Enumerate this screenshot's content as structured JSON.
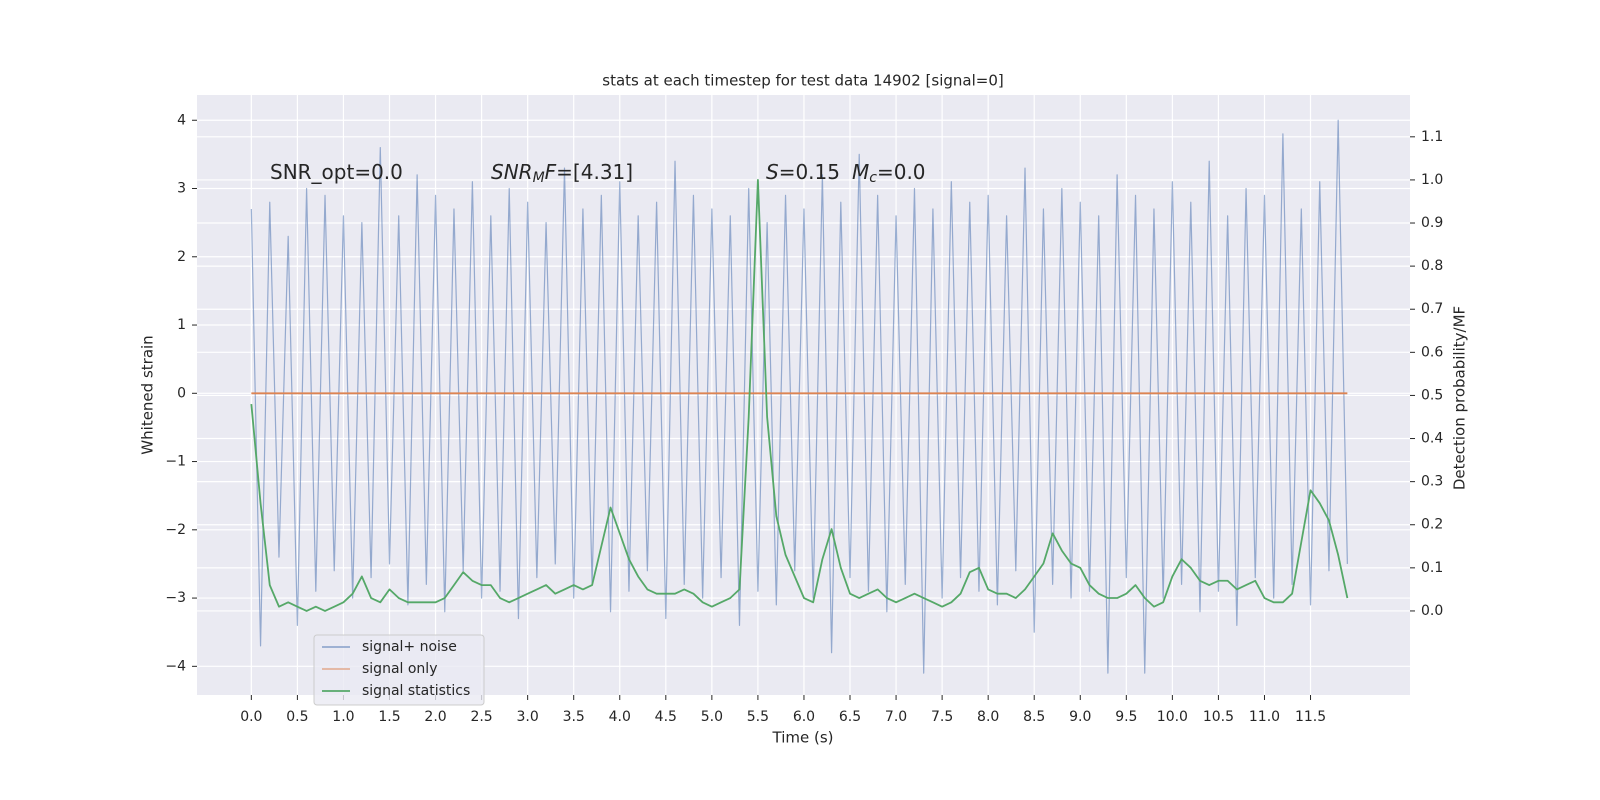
{
  "chart_data": {
    "type": "line",
    "title": "stats at each timestep for test data 14902 [signal=0]",
    "xlabel": "Time (s)",
    "ylabel": "Whitened strain",
    "y2label": "Detection probability/MF",
    "annotations": [
      [
        "SNR_opt=0.0"
      ],
      [
        "SNR",
        "M",
        "F",
        "=[4.31]"
      ],
      [
        "S",
        "=0.15",
        "M",
        "c",
        "=0.0"
      ]
    ],
    "x": [
      0.0,
      0.1,
      0.2,
      0.3,
      0.4,
      0.5,
      0.6,
      0.7,
      0.8,
      0.9,
      1.0,
      1.1,
      1.2,
      1.3,
      1.4,
      1.5,
      1.6,
      1.7,
      1.8,
      1.9,
      2.0,
      2.1,
      2.2,
      2.3,
      2.4,
      2.5,
      2.6,
      2.7,
      2.8,
      2.9,
      3.0,
      3.1,
      3.2,
      3.3,
      3.4,
      3.5,
      3.6,
      3.7,
      3.8,
      3.9,
      4.0,
      4.1,
      4.2,
      4.3,
      4.4,
      4.5,
      4.6,
      4.7,
      4.8,
      4.9,
      5.0,
      5.1,
      5.2,
      5.3,
      5.4,
      5.5,
      5.6,
      5.7,
      5.8,
      5.9,
      6.0,
      6.1,
      6.2,
      6.3,
      6.4,
      6.5,
      6.6,
      6.7,
      6.8,
      6.9,
      7.0,
      7.1,
      7.2,
      7.3,
      7.4,
      7.5,
      7.6,
      7.7,
      7.8,
      7.9,
      8.0,
      8.1,
      8.2,
      8.3,
      8.4,
      8.5,
      8.6,
      8.7,
      8.8,
      8.9,
      9.0,
      9.1,
      9.2,
      9.3,
      9.4,
      9.5,
      9.6,
      9.7,
      9.8,
      9.9,
      10.0,
      10.1,
      10.2,
      10.3,
      10.4,
      10.5,
      10.6,
      10.7,
      10.8,
      10.9,
      11.0,
      11.1,
      11.2,
      11.3,
      11.4,
      11.5,
      11.6,
      11.7,
      11.8,
      11.9
    ],
    "series": [
      {
        "name": "signal+ noise",
        "color": "#4c72b0",
        "values": [
          2.7,
          -3.7,
          2.8,
          -2.4,
          2.3,
          -3.4,
          3.0,
          -2.9,
          2.9,
          -2.6,
          2.6,
          -3.0,
          2.5,
          -2.7,
          3.6,
          -2.5,
          2.6,
          -3.1,
          3.2,
          -2.8,
          2.9,
          -3.2,
          2.7,
          -2.6,
          3.1,
          -3.0,
          2.6,
          -2.9,
          3.0,
          -3.3,
          2.8,
          -2.7,
          2.5,
          -2.5,
          3.3,
          -3.0,
          2.7,
          -2.8,
          2.9,
          -3.2,
          3.1,
          -2.9,
          2.6,
          -2.6,
          2.8,
          -3.3,
          3.4,
          -2.8,
          2.9,
          -3.0,
          2.7,
          -2.7,
          2.6,
          -3.4,
          3.0,
          -2.9,
          2.5,
          -3.1,
          2.9,
          -2.6,
          2.7,
          -3.0,
          3.2,
          -3.8,
          2.8,
          -2.7,
          3.5,
          -2.9,
          2.9,
          -3.2,
          2.6,
          -2.8,
          3.0,
          -4.1,
          2.7,
          -3.0,
          3.1,
          -2.7,
          2.8,
          -2.9,
          2.9,
          -3.1,
          2.6,
          -2.6,
          3.3,
          -3.5,
          2.7,
          -2.8,
          3.0,
          -3.0,
          2.8,
          -2.9,
          2.6,
          -4.1,
          3.2,
          -2.7,
          2.9,
          -4.1,
          2.7,
          -3.0,
          3.1,
          -2.8,
          2.8,
          -3.2,
          3.4,
          -2.9,
          2.6,
          -3.4,
          3.0,
          -2.7,
          2.9,
          -3.0,
          3.8,
          -2.8,
          2.7,
          -3.1,
          3.1,
          -2.6,
          4.0,
          -2.5
        ]
      },
      {
        "name": "signal only",
        "color": "#dd8452",
        "values": [
          0,
          0,
          0,
          0,
          0,
          0,
          0,
          0,
          0,
          0,
          0,
          0,
          0,
          0,
          0,
          0,
          0,
          0,
          0,
          0,
          0,
          0,
          0,
          0,
          0,
          0,
          0,
          0,
          0,
          0,
          0,
          0,
          0,
          0,
          0,
          0,
          0,
          0,
          0,
          0,
          0,
          0,
          0,
          0,
          0,
          0,
          0,
          0,
          0,
          0,
          0,
          0,
          0,
          0,
          0,
          0,
          0,
          0,
          0,
          0,
          0,
          0,
          0,
          0,
          0,
          0,
          0,
          0,
          0,
          0,
          0,
          0,
          0,
          0,
          0,
          0,
          0,
          0,
          0,
          0,
          0,
          0,
          0,
          0,
          0,
          0,
          0,
          0,
          0,
          0,
          0,
          0,
          0,
          0,
          0,
          0,
          0,
          0,
          0,
          0,
          0,
          0,
          0,
          0,
          0,
          0,
          0,
          0,
          0,
          0,
          0,
          0,
          0,
          0,
          0,
          0,
          0,
          0,
          0,
          0
        ]
      },
      {
        "name": "signal statistics",
        "color": "#55a868",
        "axis": "y2",
        "values": [
          0.48,
          0.25,
          0.06,
          0.01,
          0.02,
          0.01,
          0.0,
          0.01,
          0.0,
          0.01,
          0.02,
          0.04,
          0.08,
          0.03,
          0.02,
          0.05,
          0.03,
          0.02,
          0.02,
          0.02,
          0.02,
          0.03,
          0.06,
          0.09,
          0.07,
          0.06,
          0.06,
          0.03,
          0.02,
          0.03,
          0.04,
          0.05,
          0.06,
          0.04,
          0.05,
          0.06,
          0.05,
          0.06,
          0.15,
          0.24,
          0.18,
          0.12,
          0.08,
          0.05,
          0.04,
          0.04,
          0.04,
          0.05,
          0.04,
          0.02,
          0.01,
          0.02,
          0.03,
          0.05,
          0.45,
          1.0,
          0.45,
          0.22,
          0.13,
          0.08,
          0.03,
          0.02,
          0.12,
          0.19,
          0.1,
          0.04,
          0.03,
          0.04,
          0.05,
          0.03,
          0.02,
          0.03,
          0.04,
          0.03,
          0.02,
          0.01,
          0.02,
          0.04,
          0.09,
          0.1,
          0.05,
          0.04,
          0.04,
          0.03,
          0.05,
          0.08,
          0.11,
          0.18,
          0.14,
          0.11,
          0.1,
          0.06,
          0.04,
          0.03,
          0.03,
          0.04,
          0.06,
          0.03,
          0.01,
          0.02,
          0.08,
          0.12,
          0.1,
          0.07,
          0.06,
          0.07,
          0.07,
          0.05,
          0.06,
          0.07,
          0.03,
          0.02,
          0.02,
          0.04,
          0.16,
          0.28,
          0.25,
          0.21,
          0.13,
          0.03
        ]
      }
    ],
    "xlim": [
      -0.59,
      12.58
    ],
    "xticks": [
      {
        "value": 0,
        "label": "0.0"
      },
      0.5,
      {
        "value": 1,
        "label": "1.0"
      },
      1.5,
      {
        "value": 2,
        "label": "2.0"
      },
      2.5,
      {
        "value": 3,
        "label": "3.0"
      },
      3.5,
      {
        "value": 4,
        "label": "4.0"
      },
      4.5,
      {
        "value": 5,
        "label": "5.0"
      },
      5.5,
      {
        "value": 6,
        "label": "6.0"
      },
      6.5,
      {
        "value": 7,
        "label": "7.0"
      },
      7.5,
      {
        "value": 8,
        "label": "8.0"
      },
      8.5,
      {
        "value": 9,
        "label": "9.0"
      },
      9.5,
      {
        "value": 10,
        "label": "10.0"
      },
      10.5,
      {
        "value": 11,
        "label": "11.0"
      },
      11.5
    ],
    "ylim": [
      -4.42,
      4.37
    ],
    "yticks": [
      {
        "value": -4,
        "label": "−4"
      },
      {
        "value": -3,
        "label": "−3"
      },
      {
        "value": -2,
        "label": "−2"
      },
      {
        "value": -1,
        "label": "−1"
      },
      0,
      1,
      2,
      3,
      4
    ],
    "y2lim": [
      -0.195,
      1.197
    ],
    "y2ticks": [
      {
        "value": 0,
        "label": "0.0"
      },
      0.1,
      0.2,
      0.3,
      0.4,
      0.5,
      0.6,
      0.7,
      0.8,
      0.9,
      {
        "value": 1,
        "label": "1.0"
      },
      1.1
    ],
    "grid": true,
    "legend": "lower left"
  }
}
